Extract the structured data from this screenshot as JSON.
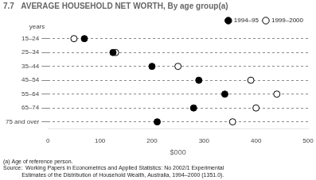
{
  "chart_data": {
    "type": "dot",
    "orientation": "horizontal",
    "title": "7.7   AVERAGE HOUSEHOLD NET WORTH, By age group(a)",
    "categories": [
      "15–24",
      "25–34",
      "35–44",
      "45–54",
      "55–64",
      "65–74",
      "75 and over"
    ],
    "series": [
      {
        "name": "1994–95",
        "color": "#000000",
        "marker": "circle",
        "values": [
          70,
          125,
          200,
          290,
          340,
          280,
          210
        ]
      },
      {
        "name": "1999–2000",
        "color": "#000000",
        "marker": "open_circle",
        "values": [
          50,
          130,
          250,
          390,
          440,
          400,
          355
        ]
      }
    ],
    "xlabel": "$000",
    "ylabel": "years",
    "xlim": [
      0,
      500
    ],
    "xticks": [
      0,
      100,
      200,
      300,
      400,
      500
    ],
    "grid": "y",
    "legend": "upper right",
    "footnotes": [
      "(a) Age of reference person.",
      "Source:  Working Papers in Econometrics and Applied Statistics: No 2002/1 Experimental",
      "            Estimates of the Distribution of Household Wealth, Australia, 1994–2000 (1351.0)."
    ]
  }
}
